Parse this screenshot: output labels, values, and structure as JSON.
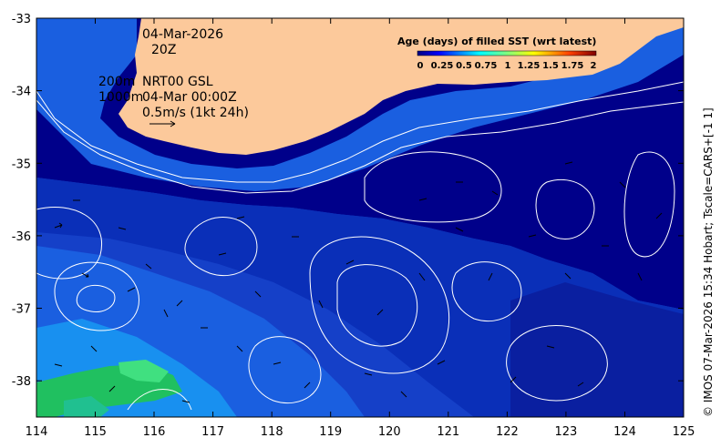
{
  "map": {
    "date": "04-Mar-2026",
    "time": "20Z",
    "isobath_shallow": "200m",
    "isobath_deep": "1000m",
    "product": "NRT00 GSL",
    "product_time": "04-Mar 00:00Z",
    "vector_scale": "0.5m/s (1kt 24h)",
    "longitude_range": [
      114,
      125
    ],
    "latitude_range": [
      -38.5,
      -33
    ]
  },
  "axes": {
    "x_ticks": [
      "114",
      "115",
      "116",
      "117",
      "118",
      "119",
      "120",
      "121",
      "122",
      "123",
      "124",
      "125"
    ],
    "y_ticks": [
      "-33",
      "-34",
      "-35",
      "-36",
      "-37",
      "-38"
    ]
  },
  "colorbar": {
    "title": "Age (days) of filled SST (wrt latest)",
    "ticks": [
      "0",
      "0.25",
      "0.5",
      "0.75",
      "1",
      "1.25",
      "1.5",
      "1.75",
      "2"
    ],
    "colors": [
      "#00007f",
      "#0000ff",
      "#0080ff",
      "#00ffff",
      "#80ff80",
      "#ffff00",
      "#ff8000",
      "#ff0000",
      "#7f0000"
    ]
  },
  "colors": {
    "land": "#fcc99b",
    "deep_ocean": "#00008a",
    "mid_ocean": "#0a2fb8",
    "shelf": "#1a5fe0",
    "contour": "#ffffff"
  },
  "credit": "© IMOS 07-Mar-2026 15:34 Hobart; Tscale=CARS+[-1 1]"
}
